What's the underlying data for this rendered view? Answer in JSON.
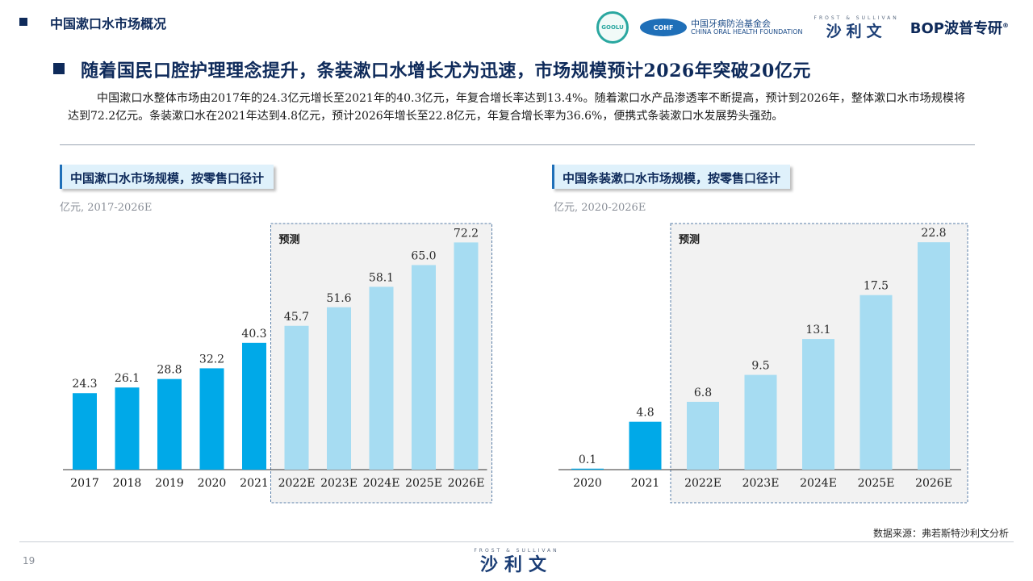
{
  "header": {
    "title": "中国漱口水市场概况",
    "logos": {
      "ring_text": "GOOLU",
      "cohf_badge": "COHF",
      "cohf_cn": "中国牙病防治基金会",
      "cohf_en": "CHINA ORAL HEALTH FOUNDATION",
      "fs_en": "FROST & SULLIVAN",
      "fs_cn": "沙利文",
      "bop": "BOP波普专研",
      "bop_mark": "®"
    }
  },
  "main_title": "随着国民口腔护理理念提升，条装漱口水增长尤为迅速，市场规模预计2026年突破20亿元",
  "summary": "中国漱口水整体市场由2017年的24.3亿元增长至2021年的40.3亿元，年复合增长率达到13.4%。随着漱口水产品渗透率不断提高，预计到2026年，整体漱口水市场规模将达到72.2亿元。条装漱口水在2021年达到4.8亿元，预计2026年增长至22.8亿元，年复合增长率为36.6%，便携式条装漱口水发展势头强劲。",
  "colors": {
    "actual": "#00a9e8",
    "forecast": "#a6dcf2",
    "forecast_box": "#f2f2f2",
    "forecast_border": "#5a7fa8",
    "navy": "#0e2a5a"
  },
  "chart_data": [
    {
      "type": "bar",
      "title": "中国漱口水市场规模，按零售口径计",
      "unit_label": "亿元, 2017-2026E",
      "categories": [
        "2017",
        "2018",
        "2019",
        "2020",
        "2021",
        "2022E",
        "2023E",
        "2024E",
        "2025E",
        "2026E"
      ],
      "values": [
        24.3,
        26.1,
        28.8,
        32.2,
        40.3,
        45.7,
        51.6,
        58.1,
        65.0,
        72.2
      ],
      "value_labels": [
        "24.3",
        "26.1",
        "28.8",
        "32.2",
        "40.3",
        "45.7",
        "51.6",
        "58.1",
        "65.0",
        "72.2"
      ],
      "forecast_start_index": 5,
      "forecast_label": "预测",
      "ylim": [
        0,
        80
      ]
    },
    {
      "type": "bar",
      "title": "中国条装漱口水市场规模，按零售口径计",
      "unit_label": "亿元, 2020-2026E",
      "categories": [
        "2020",
        "2021",
        "2022E",
        "2023E",
        "2024E",
        "2025E",
        "2026E"
      ],
      "values": [
        0.1,
        4.8,
        6.8,
        9.5,
        13.1,
        17.5,
        22.8
      ],
      "value_labels": [
        "0.1",
        "4.8",
        "6.8",
        "9.5",
        "13.1",
        "17.5",
        "22.8"
      ],
      "forecast_start_index": 2,
      "forecast_label": "预测",
      "ylim": [
        0,
        25
      ]
    }
  ],
  "footer": {
    "source": "数据来源：弗若斯特沙利文分析",
    "page_number": "19",
    "logo_en": "FROST & SULLIVAN",
    "logo_cn": "沙利文"
  }
}
